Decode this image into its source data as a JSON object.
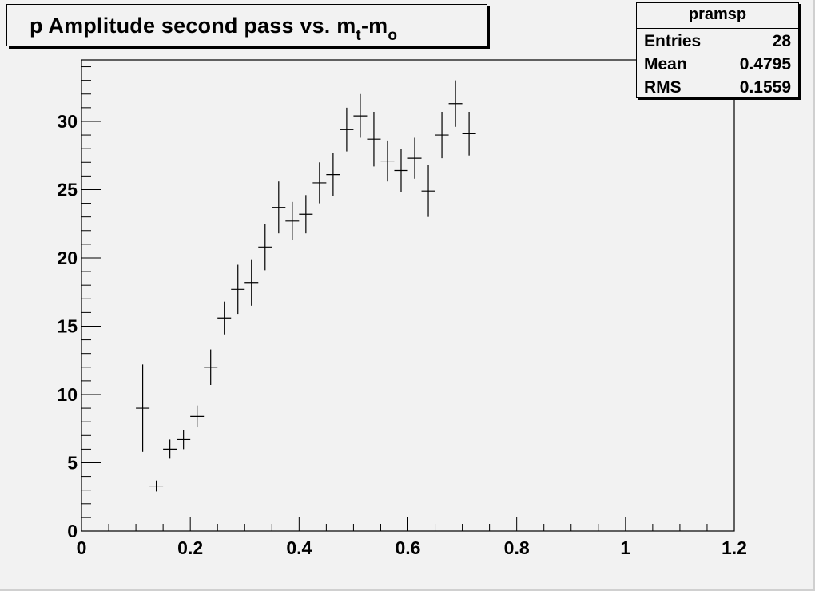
{
  "title": {
    "main": "p Amplitude second pass vs. m",
    "sub1": "t",
    "mid": "-m",
    "sub2": "o"
  },
  "stats": {
    "name": "pramsp",
    "rows": [
      {
        "label": "Entries",
        "value": "28"
      },
      {
        "label": "Mean",
        "value": "0.4795"
      },
      {
        "label": "RMS",
        "value": "0.1559"
      }
    ]
  },
  "chart_data": {
    "type": "scatter",
    "title": "p Amplitude second pass vs. m_t-m_o",
    "xlabel": "",
    "ylabel": "",
    "xlim": [
      0,
      1.2
    ],
    "ylim": [
      0,
      34.5
    ],
    "grid": false,
    "x_ticks": [
      "0",
      "0.2",
      "0.4",
      "0.6",
      "0.8",
      "1",
      "1.2"
    ],
    "y_ticks": [
      "0",
      "5",
      "10",
      "15",
      "20",
      "25",
      "30"
    ],
    "x_tick_values": [
      0,
      0.2,
      0.4,
      0.6,
      0.8,
      1.0,
      1.2
    ],
    "y_tick_values": [
      0,
      5,
      10,
      15,
      20,
      25,
      30
    ],
    "bin_halfwidth": 0.0125,
    "points": [
      {
        "x": 0.1125,
        "y": 9.0,
        "err": 3.2
      },
      {
        "x": 0.1375,
        "y": 3.3,
        "err": 0.4
      },
      {
        "x": 0.1625,
        "y": 6.0,
        "err": 0.7
      },
      {
        "x": 0.1875,
        "y": 6.7,
        "err": 0.7
      },
      {
        "x": 0.2125,
        "y": 8.4,
        "err": 0.8
      },
      {
        "x": 0.2375,
        "y": 12.0,
        "err": 1.3
      },
      {
        "x": 0.2625,
        "y": 15.6,
        "err": 1.2
      },
      {
        "x": 0.2875,
        "y": 17.7,
        "err": 1.8
      },
      {
        "x": 0.3125,
        "y": 18.2,
        "err": 1.7
      },
      {
        "x": 0.3375,
        "y": 20.8,
        "err": 1.7
      },
      {
        "x": 0.3625,
        "y": 23.7,
        "err": 1.9
      },
      {
        "x": 0.3875,
        "y": 22.7,
        "err": 1.4
      },
      {
        "x": 0.4125,
        "y": 23.2,
        "err": 1.4
      },
      {
        "x": 0.4375,
        "y": 25.5,
        "err": 1.5
      },
      {
        "x": 0.4625,
        "y": 26.1,
        "err": 1.6
      },
      {
        "x": 0.4875,
        "y": 29.4,
        "err": 1.6
      },
      {
        "x": 0.5125,
        "y": 30.4,
        "err": 1.6
      },
      {
        "x": 0.5375,
        "y": 28.7,
        "err": 2.0
      },
      {
        "x": 0.5625,
        "y": 27.1,
        "err": 1.5
      },
      {
        "x": 0.5875,
        "y": 26.4,
        "err": 1.6
      },
      {
        "x": 0.6125,
        "y": 27.3,
        "err": 1.5
      },
      {
        "x": 0.6375,
        "y": 24.9,
        "err": 1.9
      },
      {
        "x": 0.6625,
        "y": 29.0,
        "err": 1.7
      },
      {
        "x": 0.6875,
        "y": 31.3,
        "err": 1.7
      },
      {
        "x": 0.7125,
        "y": 29.1,
        "err": 1.6
      }
    ]
  }
}
